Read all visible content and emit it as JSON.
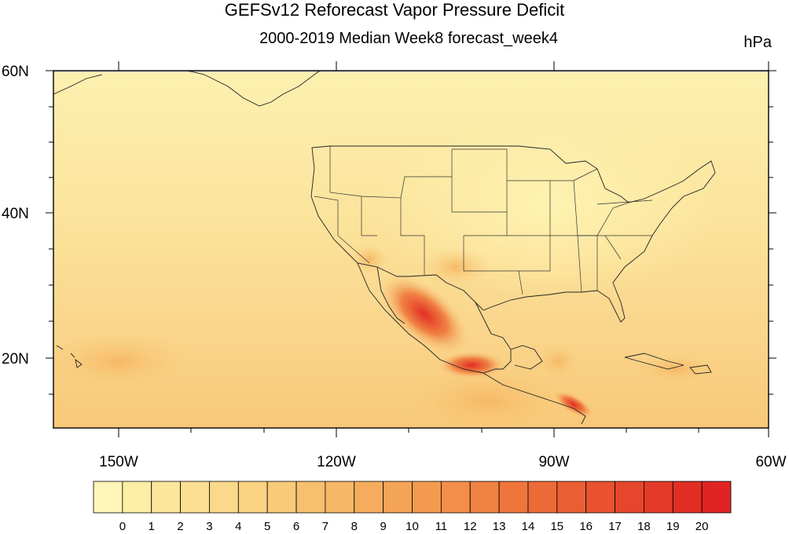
{
  "title": "GEFSv12 Reforecast Vapor Pressure Deficit",
  "subtitle": "2000-2019 Median Week8 forecast_week4",
  "units": "hPa",
  "lat_labels": [
    "60N",
    "40N",
    "20N"
  ],
  "lon_labels": [
    "150W",
    "120W",
    "90W",
    "60W"
  ],
  "colorbar": {
    "labels": [
      "0",
      "1",
      "2",
      "3",
      "4",
      "5",
      "6",
      "7",
      "8",
      "9",
      "10",
      "11",
      "12",
      "13",
      "14",
      "15",
      "16",
      "17",
      "18",
      "19",
      "20"
    ],
    "colors": [
      "#fff5b8",
      "#fdeea6",
      "#fce69b",
      "#fbdf92",
      "#fad98a",
      "#f9d282",
      "#f8ca79",
      "#f7c06f",
      "#f6b866",
      "#f5ad5d",
      "#f4a455",
      "#f39a4f",
      "#f28e49",
      "#f08243",
      "#ee763d",
      "#ec6a38",
      "#ea5e33",
      "#e8522f",
      "#e6462b",
      "#e43a28",
      "#e22e25",
      "#e02424"
    ]
  },
  "map_style": {
    "ocean_color": "#fbdf92",
    "land_color": "#fad98a",
    "border_color": "#222222"
  }
}
